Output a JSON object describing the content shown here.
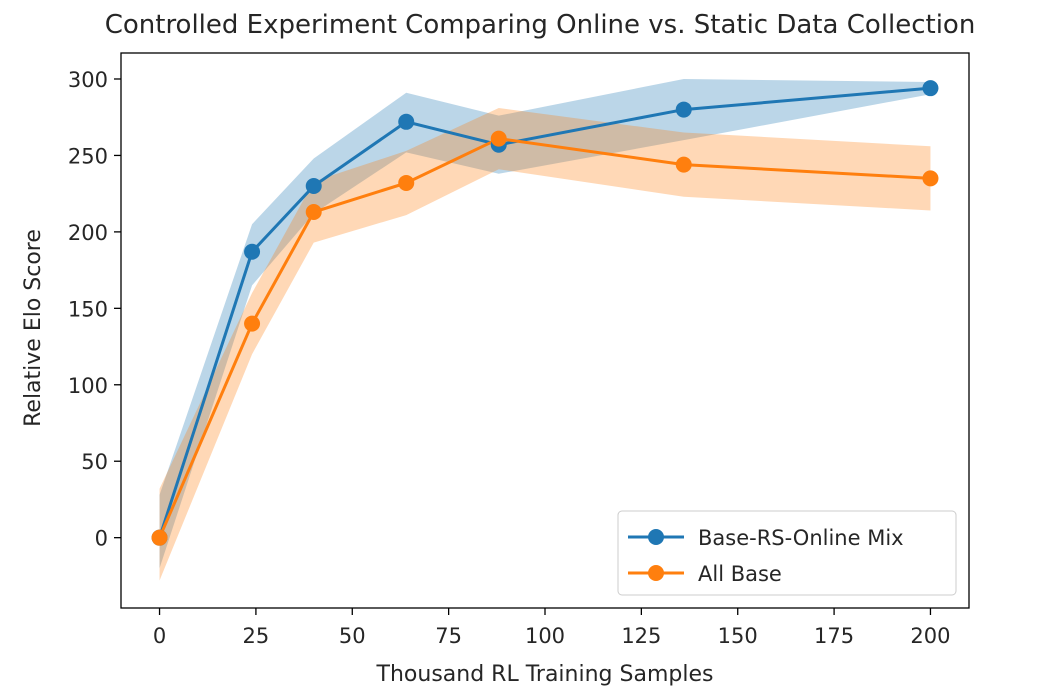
{
  "chart_data": {
    "type": "line",
    "title": "Controlled Experiment Comparing Online vs. Static Data Collection",
    "xlabel": "Thousand RL Training Samples",
    "ylabel": "Relative Elo Score",
    "xlim": [
      -10,
      210
    ],
    "ylim": [
      -46,
      317
    ],
    "xticks": [
      0,
      25,
      50,
      75,
      100,
      125,
      150,
      175,
      200
    ],
    "yticks": [
      0,
      50,
      100,
      150,
      200,
      250,
      300
    ],
    "grid": false,
    "legend_position": "lower-right",
    "x": [
      0,
      24,
      40,
      64,
      88,
      136,
      200
    ],
    "series": [
      {
        "name": "Base-RS-Online Mix",
        "color": "#1f77b4",
        "band_color": "#1f77b4",
        "values": [
          0,
          187,
          230,
          272,
          257,
          280,
          294
        ],
        "lower": [
          -20,
          165,
          212,
          252,
          238,
          260,
          290
        ],
        "upper": [
          28,
          205,
          248,
          291,
          276,
          300,
          298
        ]
      },
      {
        "name": "All Base",
        "color": "#ff7f0e",
        "band_color": "#ff7f0e",
        "values": [
          0,
          140,
          213,
          232,
          261,
          244,
          235
        ],
        "lower": [
          -28,
          120,
          193,
          211,
          241,
          223,
          214
        ],
        "upper": [
          32,
          160,
          233,
          253,
          281,
          265,
          256
        ]
      }
    ]
  }
}
